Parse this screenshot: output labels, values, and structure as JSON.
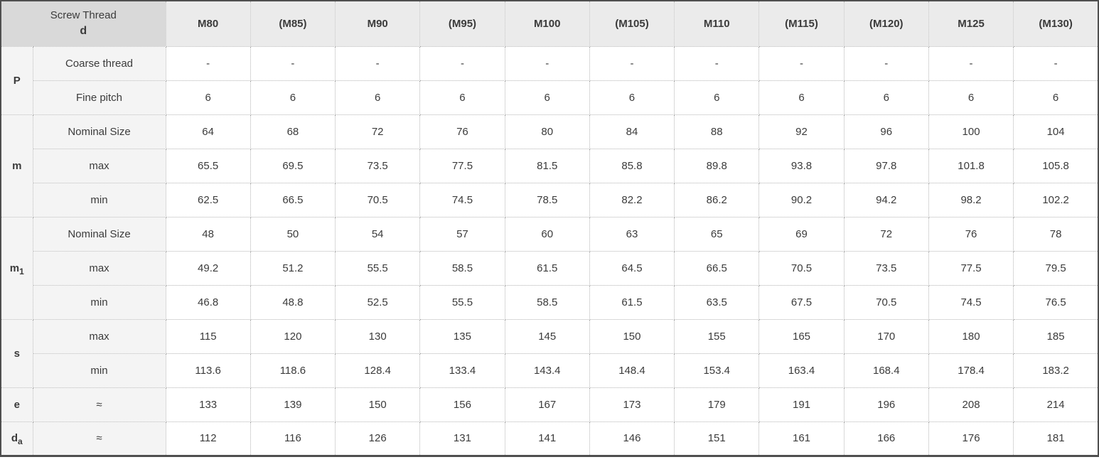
{
  "table": {
    "corner": {
      "line1": "Screw Thread",
      "line2": "d"
    },
    "columns": [
      "M80",
      "(M85)",
      "M90",
      "(M95)",
      "M100",
      "(M105)",
      "M110",
      "(M115)",
      "(M120)",
      "M125",
      "(M130)"
    ],
    "groups": [
      {
        "key": "P",
        "key_sub": "",
        "rows": [
          {
            "label": "Coarse thread",
            "values": [
              "-",
              "-",
              "-",
              "-",
              "-",
              "-",
              "-",
              "-",
              "-",
              "-",
              "-"
            ]
          },
          {
            "label": "Fine pitch",
            "values": [
              "6",
              "6",
              "6",
              "6",
              "6",
              "6",
              "6",
              "6",
              "6",
              "6",
              "6"
            ]
          }
        ]
      },
      {
        "key": "m",
        "key_sub": "",
        "rows": [
          {
            "label": "Nominal Size",
            "values": [
              "64",
              "68",
              "72",
              "76",
              "80",
              "84",
              "88",
              "92",
              "96",
              "100",
              "104"
            ]
          },
          {
            "label": "max",
            "values": [
              "65.5",
              "69.5",
              "73.5",
              "77.5",
              "81.5",
              "85.8",
              "89.8",
              "93.8",
              "97.8",
              "101.8",
              "105.8"
            ]
          },
          {
            "label": "min",
            "values": [
              "62.5",
              "66.5",
              "70.5",
              "74.5",
              "78.5",
              "82.2",
              "86.2",
              "90.2",
              "94.2",
              "98.2",
              "102.2"
            ]
          }
        ]
      },
      {
        "key": "m",
        "key_sub": "1",
        "rows": [
          {
            "label": "Nominal Size",
            "values": [
              "48",
              "50",
              "54",
              "57",
              "60",
              "63",
              "65",
              "69",
              "72",
              "76",
              "78"
            ]
          },
          {
            "label": "max",
            "values": [
              "49.2",
              "51.2",
              "55.5",
              "58.5",
              "61.5",
              "64.5",
              "66.5",
              "70.5",
              "73.5",
              "77.5",
              "79.5"
            ]
          },
          {
            "label": "min",
            "values": [
              "46.8",
              "48.8",
              "52.5",
              "55.5",
              "58.5",
              "61.5",
              "63.5",
              "67.5",
              "70.5",
              "74.5",
              "76.5"
            ]
          }
        ]
      },
      {
        "key": "s",
        "key_sub": "",
        "rows": [
          {
            "label": "max",
            "values": [
              "115",
              "120",
              "130",
              "135",
              "145",
              "150",
              "155",
              "165",
              "170",
              "180",
              "185"
            ]
          },
          {
            "label": "min",
            "values": [
              "113.6",
              "118.6",
              "128.4",
              "133.4",
              "143.4",
              "148.4",
              "153.4",
              "163.4",
              "168.4",
              "178.4",
              "183.2"
            ]
          }
        ]
      },
      {
        "key": "e",
        "key_sub": "",
        "rows": [
          {
            "label": "≈",
            "values": [
              "133",
              "139",
              "150",
              "156",
              "167",
              "173",
              "179",
              "191",
              "196",
              "208",
              "214"
            ]
          }
        ]
      },
      {
        "key": "d",
        "key_sub": "a",
        "rows": [
          {
            "label": "≈",
            "values": [
              "112",
              "116",
              "126",
              "131",
              "141",
              "146",
              "151",
              "161",
              "166",
              "176",
              "181"
            ]
          }
        ]
      }
    ],
    "colors": {
      "header_text_accent": "#0d6cb5",
      "corner_bg": "#d9d9d9",
      "column_header_bg": "#ebebeb",
      "label_bg": "#f4f4f4",
      "data_bg": "#ffffff",
      "inner_border": "#b3b3b3",
      "outer_border": "#4f4f4f",
      "body_text": "#3b3b3b"
    }
  }
}
